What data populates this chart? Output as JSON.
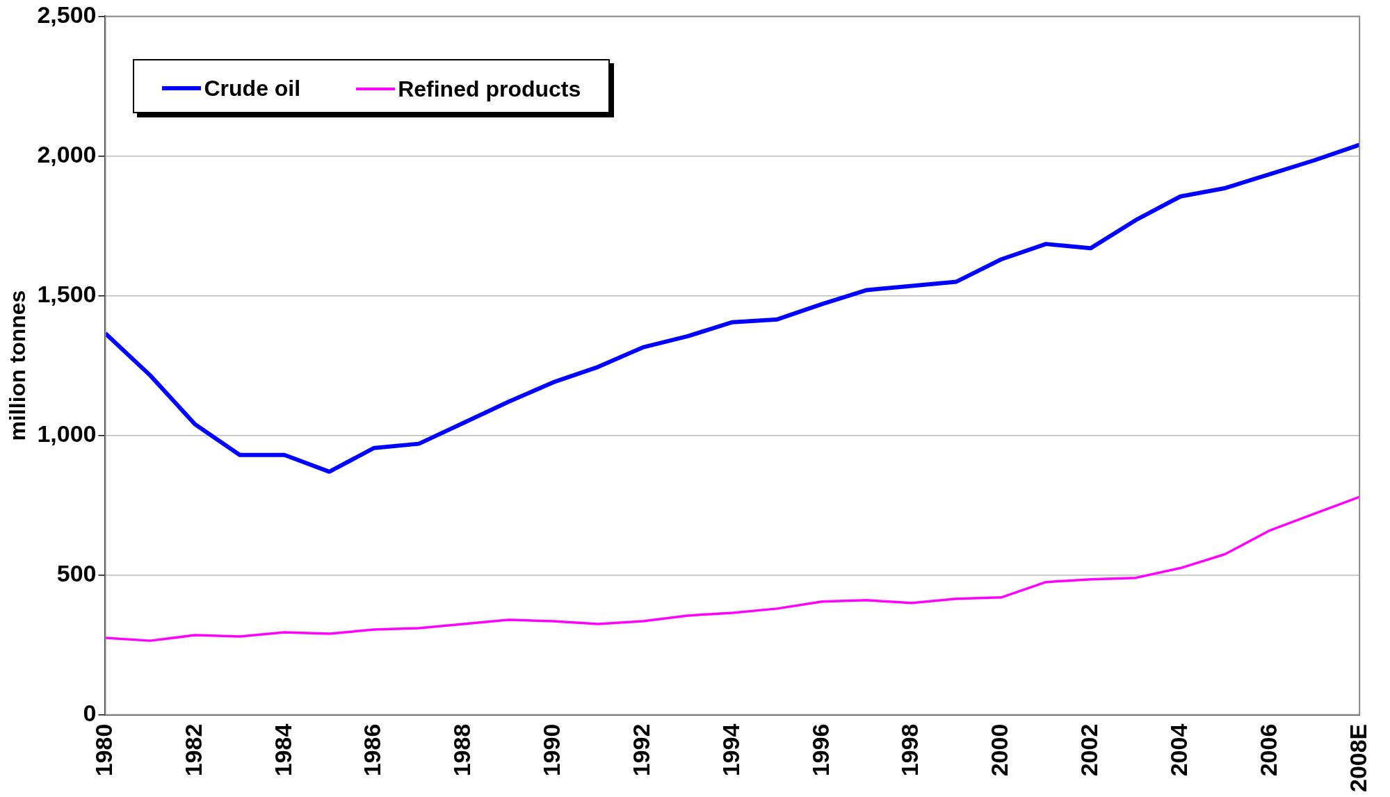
{
  "chart_data": {
    "type": "line",
    "ylabel": "million tonnes",
    "categories": [
      "1980",
      null,
      "1982",
      null,
      "1984",
      null,
      "1986",
      null,
      "1988",
      null,
      "1990",
      null,
      "1992",
      null,
      "1994",
      null,
      "1996",
      null,
      "1998",
      null,
      "2000",
      null,
      "2002",
      null,
      "2004",
      null,
      "2006",
      null,
      "2008E"
    ],
    "series": [
      {
        "name": "Crude oil",
        "color": "#0000ff",
        "values": [
          1365,
          1215,
          1040,
          930,
          930,
          870,
          955,
          970,
          1045,
          1120,
          1190,
          1245,
          1315,
          1355,
          1405,
          1415,
          1470,
          1520,
          1535,
          1550,
          1630,
          1685,
          1670,
          1770,
          1855,
          1885,
          1935,
          1985,
          2040
        ]
      },
      {
        "name": "Refined products",
        "color": "#ff00ff",
        "values": [
          275,
          265,
          285,
          280,
          295,
          290,
          305,
          310,
          325,
          340,
          335,
          325,
          335,
          355,
          365,
          380,
          405,
          410,
          400,
          415,
          420,
          475,
          485,
          490,
          525,
          575,
          660,
          720,
          780
        ]
      }
    ],
    "ylim": [
      0,
      2500
    ],
    "yticks": [
      {
        "value": 0,
        "label": "0"
      },
      {
        "value": 500,
        "label": "500"
      },
      {
        "value": 1000,
        "label": "1,000"
      },
      {
        "value": 1500,
        "label": "1,500"
      },
      {
        "value": 2000,
        "label": "2,000"
      },
      {
        "value": 2500,
        "label": "2,500"
      }
    ],
    "grid": "y",
    "legend": "top left",
    "marker": "none",
    "line_style": "solid"
  }
}
